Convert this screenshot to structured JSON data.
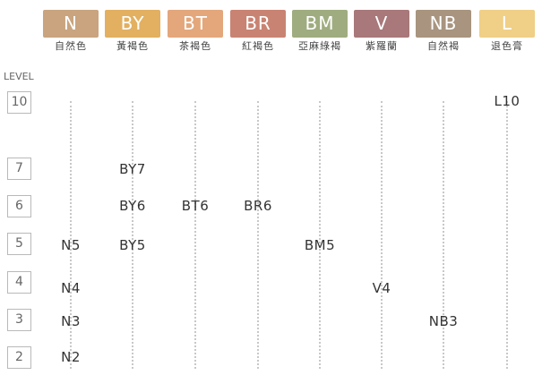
{
  "chart": {
    "level_title": "LEVEL",
    "columns": [
      {
        "code": "N",
        "name": "自然色",
        "color": "#c9a47f"
      },
      {
        "code": "BY",
        "name": "黃褐色",
        "color": "#e2b060"
      },
      {
        "code": "BT",
        "name": "茶褐色",
        "color": "#e3a77b"
      },
      {
        "code": "BR",
        "name": "紅褐色",
        "color": "#c98372"
      },
      {
        "code": "BM",
        "name": "亞麻綠褐",
        "color": "#9fac80"
      },
      {
        "code": "V",
        "name": "紫羅蘭",
        "color": "#a8787a"
      },
      {
        "code": "NB",
        "name": "自然褐",
        "color": "#a8947f"
      },
      {
        "code": "L",
        "name": "退色膏",
        "color": "#f0cf86"
      }
    ],
    "levels": [
      "10",
      "7",
      "6",
      "5",
      "4",
      "3",
      "2"
    ],
    "cells": [
      {
        "col": 7,
        "row": 0,
        "label": "L10"
      },
      {
        "col": 1,
        "row": 1,
        "label": "BY7"
      },
      {
        "col": 1,
        "row": 2,
        "label": "BY6"
      },
      {
        "col": 2,
        "row": 2,
        "label": "BT6"
      },
      {
        "col": 3,
        "row": 2,
        "label": "BR6"
      },
      {
        "col": 0,
        "row": 3,
        "label": "N5"
      },
      {
        "col": 1,
        "row": 3,
        "label": "BY5"
      },
      {
        "col": 4,
        "row": 3,
        "label": "BM5"
      },
      {
        "col": 0,
        "row": 4,
        "label": "N4"
      },
      {
        "col": 5,
        "row": 4,
        "label": "V4"
      },
      {
        "col": 0,
        "row": 5,
        "label": "N3"
      },
      {
        "col": 6,
        "row": 5,
        "label": "NB3"
      },
      {
        "col": 0,
        "row": 6,
        "label": "N2"
      }
    ]
  }
}
